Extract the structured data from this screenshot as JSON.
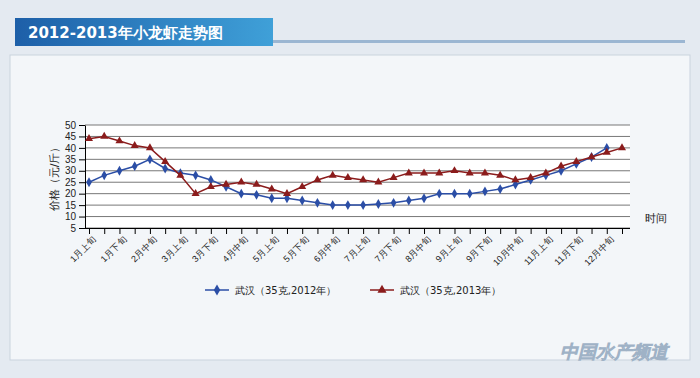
{
  "chart_data": {
    "type": "line",
    "title": "2012-2013年小龙虾走势图",
    "y_label": "价格（元/斤）",
    "x_label": "时间",
    "watermark": "中国水产频道",
    "categories": [
      "1月上旬",
      null,
      "1月下旬",
      null,
      "2月中旬",
      null,
      "3月上旬",
      null,
      "3月下旬",
      null,
      "4月中旬",
      null,
      "5月上旬",
      null,
      "5月下旬",
      null,
      "6月中旬",
      null,
      "7月上旬",
      null,
      "7月下旬",
      null,
      "8月中旬",
      null,
      "9月上旬",
      null,
      "9月下旬",
      null,
      "10月中旬",
      null,
      "11月上旬",
      null,
      "11月下旬",
      null,
      "12月中旬",
      null
    ],
    "series": [
      {
        "name": "武汉（35克,2012年）",
        "color": "#2b4ea6",
        "marker": "diamond",
        "values": [
          25,
          28,
          30,
          32,
          35,
          31,
          29,
          28,
          26,
          23,
          20,
          19.5,
          18,
          18,
          17,
          16,
          15,
          15,
          15,
          15.5,
          16,
          17,
          18,
          20,
          20,
          20,
          21,
          22,
          24,
          26,
          28,
          30,
          33,
          36,
          40,
          null
        ]
      },
      {
        "name": "武汉（35克,2013年）",
        "color": "#8b1c1c",
        "marker": "triangle",
        "values": [
          44,
          45,
          43,
          41,
          40,
          34,
          28,
          20,
          23,
          24,
          25,
          24,
          22,
          20,
          23,
          26,
          28,
          27,
          26,
          25,
          27,
          29,
          29,
          29,
          30,
          29,
          29,
          28,
          26,
          27,
          29,
          32,
          34,
          36,
          38,
          40
        ]
      }
    ],
    "ylim": [
      5,
      50
    ],
    "yticks": [
      5,
      10,
      15,
      20,
      25,
      30,
      35,
      40,
      45,
      50
    ],
    "grid": true,
    "legend": "bottom"
  }
}
